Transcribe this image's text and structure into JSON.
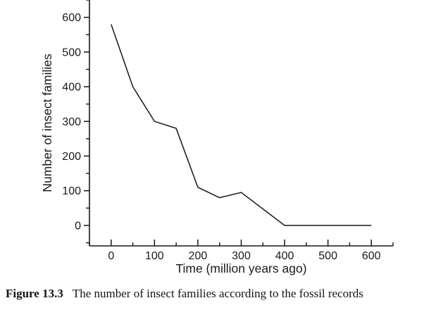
{
  "figure": {
    "caption_label": "Figure 13.3",
    "caption_text": "The number of insect families according to the fossil records"
  },
  "chart_data": {
    "type": "line",
    "title": "",
    "xlabel": "Time (million years ago)",
    "ylabel": "Number of insect families",
    "x": [
      0,
      50,
      100,
      150,
      200,
      250,
      300,
      400,
      500,
      600
    ],
    "y": [
      580,
      400,
      300,
      280,
      110,
      80,
      95,
      0,
      0,
      0
    ],
    "xlim": [
      -50,
      650
    ],
    "ylim": [
      -59,
      650
    ],
    "x_major_ticks": [
      0,
      100,
      200,
      300,
      400,
      500,
      600
    ],
    "y_major_ticks": [
      0,
      100,
      200,
      300,
      400,
      500,
      600
    ],
    "minor_tick_step": 50,
    "grid": false,
    "legend": "none",
    "line_color": "#161616",
    "axis_color": "#161616",
    "background": "#ffffff"
  }
}
